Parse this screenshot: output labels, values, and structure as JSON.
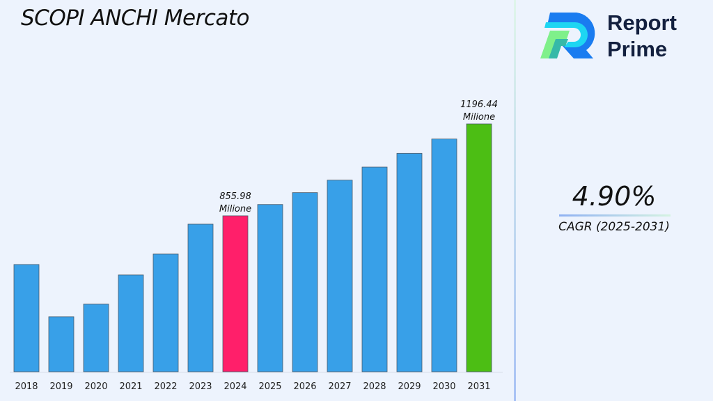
{
  "title": "SCOPI ANCHI Mercato",
  "logo": {
    "line1": "Report",
    "line2": "Prime"
  },
  "cagr": {
    "value": "4.90%",
    "label": "CAGR (2025-2031)"
  },
  "chart_data": {
    "type": "bar",
    "title": "SCOPI ANCHI Mercato",
    "xlabel": "",
    "ylabel": "",
    "categories": [
      "2018",
      "2019",
      "2020",
      "2021",
      "2022",
      "2023",
      "2024",
      "2025",
      "2026",
      "2027",
      "2028",
      "2029",
      "2030",
      "2031"
    ],
    "values": [
      675.5,
      482,
      528.5,
      636.8,
      714.2,
      825,
      855.98,
      897.92,
      941.92,
      988.07,
      1036.49,
      1087.28,
      1140.56,
      1196.44
    ],
    "ylim": [
      278,
      1196.44
    ],
    "grid": false,
    "colors": {
      "default": "#38a0e8",
      "highlight_2024": "#ff1f6a",
      "highlight_2031": "#4cbe14"
    },
    "annotations": [
      {
        "category": "2024",
        "value_label": "855.98",
        "unit_label": "Milione"
      },
      {
        "category": "2031",
        "value_label": "1196.44",
        "unit_label": "Milione"
      }
    ]
  }
}
